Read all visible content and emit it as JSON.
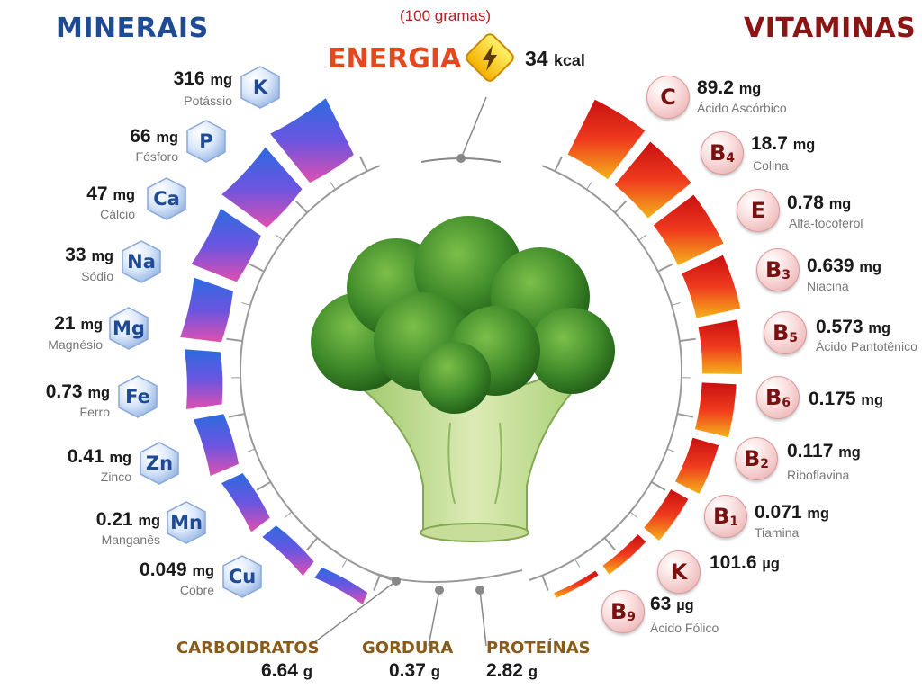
{
  "header": {
    "minerals_title": "MINERAIS",
    "vitamins_title": "VITAMINAS",
    "serving": "(100 gramas)",
    "energy_label": "ENERGIA",
    "energy_value": "34",
    "energy_unit": "kcal"
  },
  "minerals": [
    {
      "symbol": "K",
      "value": "316",
      "unit": "mg",
      "name": "Potássio"
    },
    {
      "symbol": "P",
      "value": "66",
      "unit": "mg",
      "name": "Fósforo"
    },
    {
      "symbol": "Ca",
      "value": "47",
      "unit": "mg",
      "name": "Cálcio"
    },
    {
      "symbol": "Na",
      "value": "33",
      "unit": "mg",
      "name": "Sódio"
    },
    {
      "symbol": "Mg",
      "value": "21",
      "unit": "mg",
      "name": "Magnésio"
    },
    {
      "symbol": "Fe",
      "value": "0.73",
      "unit": "mg",
      "name": "Ferro"
    },
    {
      "symbol": "Zn",
      "value": "0.41",
      "unit": "mg",
      "name": "Zinco"
    },
    {
      "symbol": "Mn",
      "value": "0.21",
      "unit": "mg",
      "name": "Manganês"
    },
    {
      "symbol": "Cu",
      "value": "0.049",
      "unit": "mg",
      "name": "Cobre"
    }
  ],
  "vitamins": [
    {
      "symbol": "C",
      "sub": "",
      "value": "89.2",
      "unit": "mg",
      "name": "Ácido Ascórbico"
    },
    {
      "symbol": "B",
      "sub": "4",
      "value": "18.7",
      "unit": "mg",
      "name": "Colina"
    },
    {
      "symbol": "E",
      "sub": "",
      "value": "0.78",
      "unit": "mg",
      "name": "Alfa-tocoferol"
    },
    {
      "symbol": "B",
      "sub": "3",
      "value": "0.639",
      "unit": "mg",
      "name": "Niacina"
    },
    {
      "symbol": "B",
      "sub": "5",
      "value": "0.573",
      "unit": "mg",
      "name": "Ácido Pantotênico"
    },
    {
      "symbol": "B",
      "sub": "6",
      "value": "0.175",
      "unit": "mg",
      "name": ""
    },
    {
      "symbol": "B",
      "sub": "2",
      "value": "0.117",
      "unit": "mg",
      "name": "Riboflavina"
    },
    {
      "symbol": "B",
      "sub": "1",
      "value": "0.071",
      "unit": "mg",
      "name": "Tiamina"
    },
    {
      "symbol": "K",
      "sub": "",
      "value": "101.6",
      "unit": "µg",
      "name": ""
    },
    {
      "symbol": "B",
      "sub": "9",
      "value": "63",
      "unit": "µg",
      "name": "Ácido Fólico"
    }
  ],
  "macros": [
    {
      "name": "CARBOIDRATOS",
      "value": "6.64",
      "unit": "g"
    },
    {
      "name": "GORDURA",
      "value": "0.37",
      "unit": "g"
    },
    {
      "name": "PROTEÍNAS",
      "value": "2.82",
      "unit": "g"
    }
  ],
  "colors": {
    "mineral_title": "#1e4a96",
    "vitamin_title": "#8c1414",
    "energy": "#e4481f",
    "macro_label": "#8a5a18"
  }
}
